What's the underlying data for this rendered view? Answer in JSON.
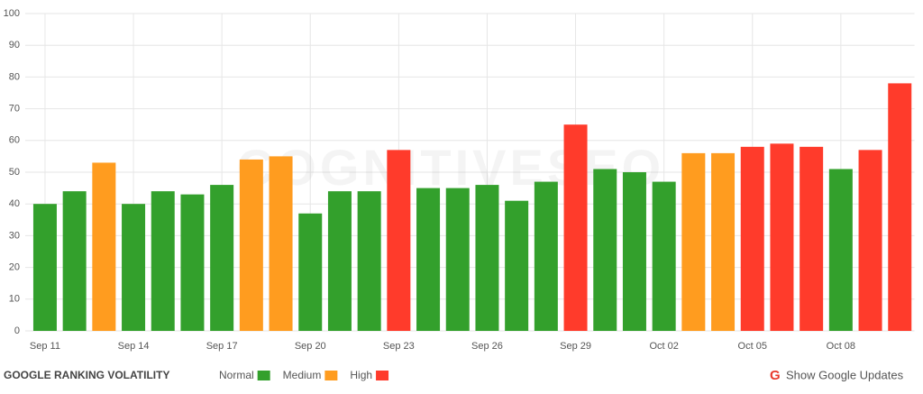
{
  "chart_data": {
    "type": "bar",
    "title": "GOOGLE RANKING VOLATILITY",
    "watermark": "COGNITIVESEO",
    "categories": [
      "Sep 11",
      null,
      null,
      "Sep 14",
      null,
      null,
      "Sep 17",
      null,
      null,
      "Sep 20",
      null,
      null,
      "Sep 23",
      null,
      null,
      "Sep 26",
      null,
      null,
      "Sep 29",
      null,
      null,
      "Oct 02",
      null,
      null,
      "Oct 05",
      null,
      null,
      "Oct 08",
      null,
      null
    ],
    "series": [
      {
        "name": "Normal",
        "color": "#33a02c",
        "values": [
          40,
          44,
          null,
          40,
          44,
          43,
          46,
          null,
          null,
          37,
          44,
          44,
          null,
          45,
          45,
          46,
          41,
          47,
          null,
          51,
          50,
          47,
          null,
          null,
          null,
          null,
          null,
          51,
          null,
          null
        ]
      },
      {
        "name": "Medium",
        "color": "#ff9c1f",
        "values": [
          null,
          null,
          53,
          null,
          null,
          null,
          null,
          54,
          55,
          null,
          null,
          null,
          null,
          null,
          null,
          null,
          null,
          null,
          null,
          null,
          null,
          null,
          56,
          56,
          null,
          null,
          null,
          null,
          null,
          null
        ]
      },
      {
        "name": "High",
        "color": "#ff3b2b",
        "values": [
          null,
          null,
          null,
          null,
          null,
          null,
          null,
          null,
          null,
          null,
          null,
          null,
          57,
          null,
          null,
          null,
          null,
          null,
          65,
          null,
          null,
          null,
          null,
          null,
          58,
          59,
          58,
          null,
          57,
          78
        ]
      }
    ],
    "ylim": [
      0,
      100
    ],
    "yticks": [
      0,
      10,
      20,
      30,
      40,
      50,
      60,
      70,
      80,
      90,
      100
    ],
    "grid": true
  },
  "controls": {
    "show_updates": "Show Google Updates",
    "icon": "G"
  }
}
